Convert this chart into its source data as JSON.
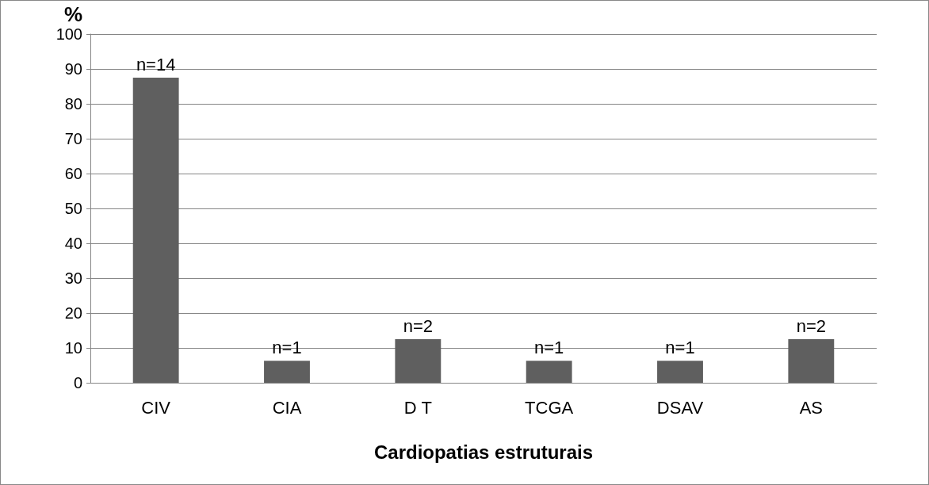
{
  "chart_data": {
    "type": "bar",
    "xlabel": "Cardiopatias estruturais",
    "ylabel": "%",
    "categories": [
      "CIV",
      "CIA",
      "D T",
      "TCGA",
      "DSAV",
      "AS"
    ],
    "values": [
      87.5,
      6.3,
      12.5,
      6.3,
      6.3,
      12.5
    ],
    "annotations": [
      {
        "text": "n=14",
        "x": "CIV",
        "y": 87.5
      },
      {
        "text": "n=1",
        "x": "CIA",
        "y": 6.3
      },
      {
        "text": "n=2",
        "x": "D T",
        "y": 12.5
      },
      {
        "text": "n=1",
        "x": "TCGA",
        "y": 6.3
      },
      {
        "text": "n=1",
        "x": "DSAV",
        "y": 6.3
      },
      {
        "text": "n=2",
        "x": "AS",
        "y": 12.5
      }
    ],
    "color": "#5f5f5f",
    "ylim": [
      0,
      100
    ],
    "yticks": [
      0,
      10,
      20,
      30,
      40,
      50,
      60,
      70,
      80,
      90,
      100
    ],
    "grid": "y"
  }
}
